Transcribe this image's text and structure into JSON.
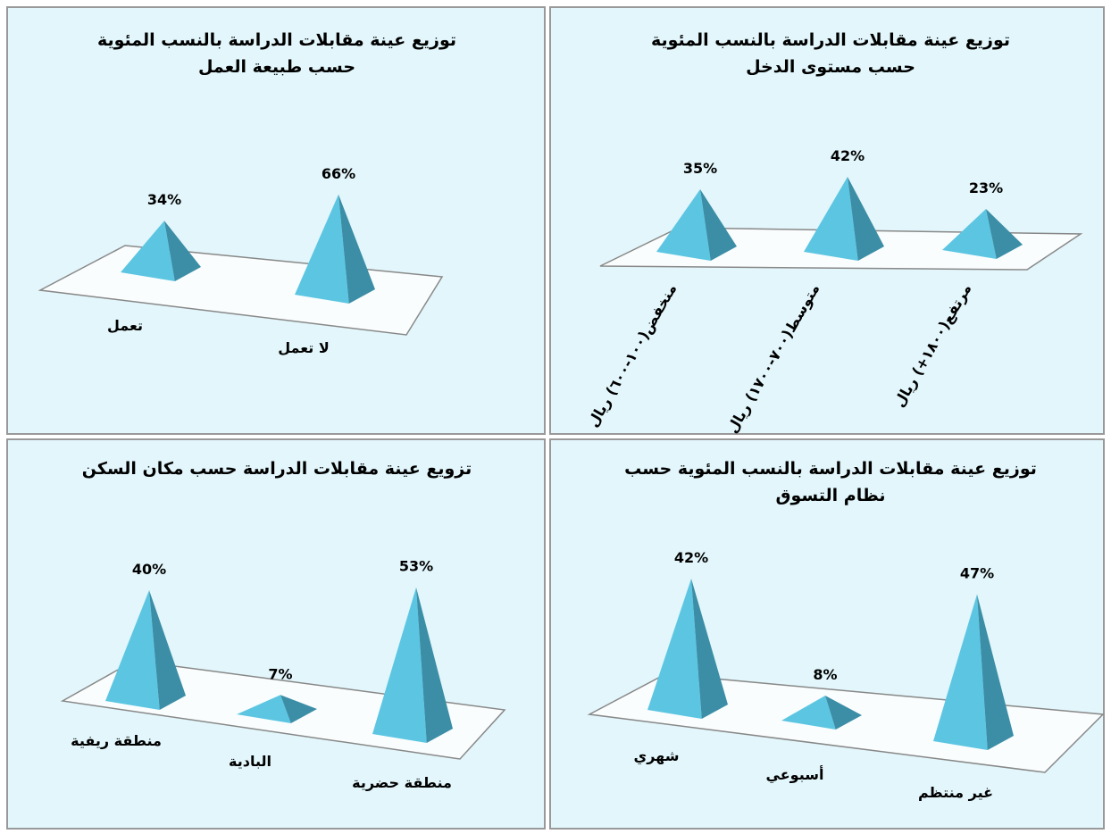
{
  "chart_data": [
    {
      "type": "pyramid",
      "title": "توزيع عينة مقابلات الدراسة بالنسب المئوية حسب طبيعة العمل",
      "categories": [
        "تعمل",
        "لا تعمل"
      ],
      "values": [
        34,
        66
      ],
      "value_labels": [
        "34%",
        "66%"
      ],
      "color": "#5cc6e2"
    },
    {
      "type": "pyramid",
      "title": "توزيع عينة مقابلات الدراسة بالنسب المئوية حسب مستوى الدخل",
      "categories": [
        "منخفض(١٠٠-٦٠٠) ريال",
        "متوسط(٧٠٠-١٧٠٠) ريال",
        "مرتفع(١٨٠٠+) ريال"
      ],
      "values": [
        35,
        42,
        23
      ],
      "value_labels": [
        "35%",
        "42%",
        "23%"
      ],
      "color": "#5cc6e2"
    },
    {
      "type": "pyramid",
      "title": "تزويع عينة مقابلات الدراسة حسب مكان السكن",
      "categories": [
        "منطقة ريفية",
        "البادية",
        "منطقة حضرية"
      ],
      "values": [
        40,
        7,
        53
      ],
      "value_labels": [
        "40%",
        "7%",
        "53%"
      ],
      "color": "#5cc6e2"
    },
    {
      "type": "pyramid",
      "title": "توزيع عينة مقابلات الدراسة بالنسب المئوية حسب نظام التسوق",
      "categories": [
        "شهري",
        "أسبوعي",
        "غير منتظم"
      ],
      "values": [
        42,
        8,
        47
      ],
      "value_labels": [
        "42%",
        "8%",
        "47%"
      ],
      "color": "#5cc6e2"
    }
  ]
}
